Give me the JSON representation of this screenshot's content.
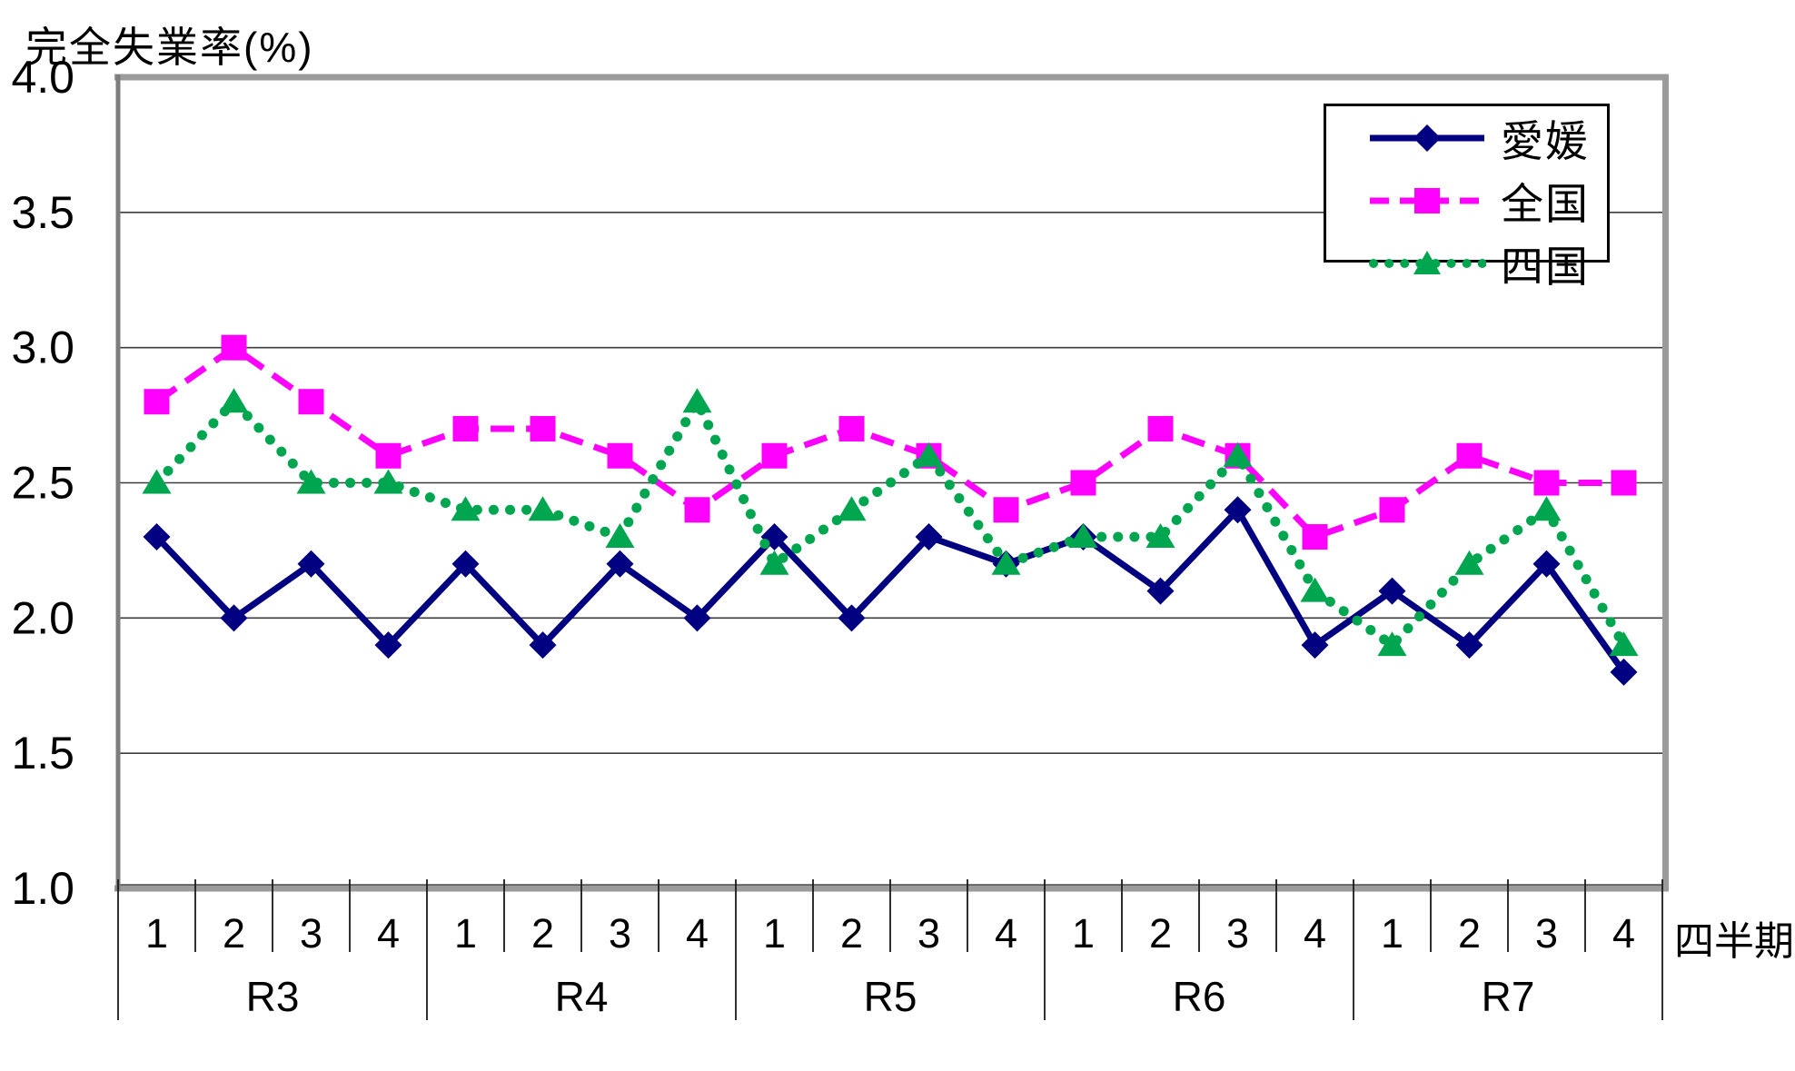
{
  "title": "完全失業率(%)",
  "x_axis_unit_label": "四半期",
  "chart_data": {
    "type": "line",
    "title": "完全失業率(%)",
    "ylabel": "完全失業率(%)",
    "xlabel": "四半期",
    "ylim": [
      1.0,
      4.0
    ],
    "y_ticks": [
      1.0,
      1.5,
      2.0,
      2.5,
      3.0,
      3.5,
      4.0
    ],
    "y_tick_labels": [
      "1.0",
      "1.5",
      "2.0",
      "2.5",
      "3.0",
      "3.5",
      "4.0"
    ],
    "grid": "horizontal",
    "legend_position": "top-right",
    "years": [
      "R3",
      "R4",
      "R5",
      "R6",
      "R7"
    ],
    "quarter_labels": [
      "1",
      "2",
      "3",
      "4",
      "1",
      "2",
      "3",
      "4",
      "1",
      "2",
      "3",
      "4",
      "1",
      "2",
      "3",
      "4",
      "1",
      "2",
      "3",
      "4"
    ],
    "series": [
      {
        "name": "愛媛",
        "key": "ehime",
        "color": "#000080",
        "line_style": "solid",
        "marker": "diamond",
        "values": [
          2.3,
          2.0,
          2.2,
          1.9,
          2.2,
          1.9,
          2.2,
          2.0,
          2.3,
          2.0,
          2.3,
          2.2,
          2.3,
          2.1,
          2.4,
          1.9,
          2.1,
          1.9,
          2.2,
          1.8
        ]
      },
      {
        "name": "全国",
        "key": "zenkoku",
        "color": "#FF00FF",
        "line_style": "dashed",
        "marker": "square",
        "values": [
          2.8,
          3.0,
          2.8,
          2.6,
          2.7,
          2.7,
          2.6,
          2.4,
          2.6,
          2.7,
          2.6,
          2.4,
          2.5,
          2.7,
          2.6,
          2.3,
          2.4,
          2.6,
          2.5,
          2.5
        ]
      },
      {
        "name": "四国",
        "key": "shikoku",
        "color": "#00A550",
        "line_style": "dotted",
        "marker": "triangle",
        "values": [
          2.5,
          2.8,
          2.5,
          2.5,
          2.4,
          2.4,
          2.3,
          2.8,
          2.2,
          2.4,
          2.6,
          2.2,
          2.3,
          2.3,
          2.6,
          2.1,
          1.9,
          2.2,
          2.4,
          1.9
        ]
      }
    ]
  }
}
